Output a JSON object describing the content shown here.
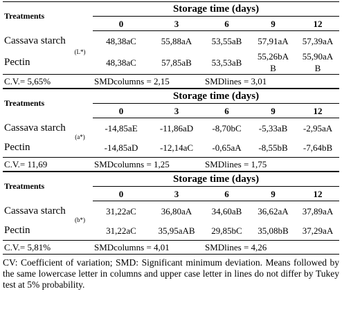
{
  "table": {
    "header": {
      "treatments": "Treatments",
      "storage": "Storage time (days)",
      "columns": [
        "0",
        "3",
        "6",
        "9",
        "12"
      ]
    },
    "blocks": [
      {
        "label": "(L*)",
        "rows": [
          {
            "name": "Cassava starch",
            "values": [
              "48,38aC",
              "55,88aA",
              "53,55aB",
              "57,91aA",
              "57,39aA"
            ]
          },
          {
            "name": "Pectin",
            "values": [
              "48,38aC",
              "57,85aB",
              "53,53aB",
              "55,26bAB",
              "55,90aAB"
            ]
          }
        ],
        "stats": [
          "C.V.= 5,65%",
          "SMDcolumns = 2,15",
          "SMDlines = 3,01"
        ]
      },
      {
        "label": "(a*)",
        "rows": [
          {
            "name": "Cassava starch",
            "values": [
              "-14,85aE",
              "-11,86aD",
              "-8,70bC",
              "-5,33aB",
              "-2,95aA"
            ]
          },
          {
            "name": "Pectin",
            "values": [
              "-14,85aD",
              "-12,14aC",
              "-0,65aA",
              "-8,55bB",
              "-7,64bB"
            ]
          }
        ],
        "stats": [
          "C.V.= 11,69",
          "SMDcolumns = 1,25",
          "SMDlines = 1,75"
        ]
      },
      {
        "label": "(b*)",
        "rows": [
          {
            "name": "Cassava starch",
            "values": [
              "31,22aC",
              "36,80aA",
              "34,60aB",
              "36,62aA",
              "37,89aA"
            ]
          },
          {
            "name": "Pectin",
            "values": [
              "31,22aC",
              "35,95aAB",
              "29,85bC",
              "35,08bB",
              "37,29aA"
            ]
          }
        ],
        "stats": [
          "C.V.= 5,81%",
          "SMDcolumns = 4,01",
          "SMDlines = 4,26"
        ]
      }
    ],
    "footnote": "CV: Coefficient of variation; SMD: Significant minimum deviation. Means followed by the same lowercase letter in columns and upper case letter in lines do not differ by Tukey test at 5% probability."
  }
}
